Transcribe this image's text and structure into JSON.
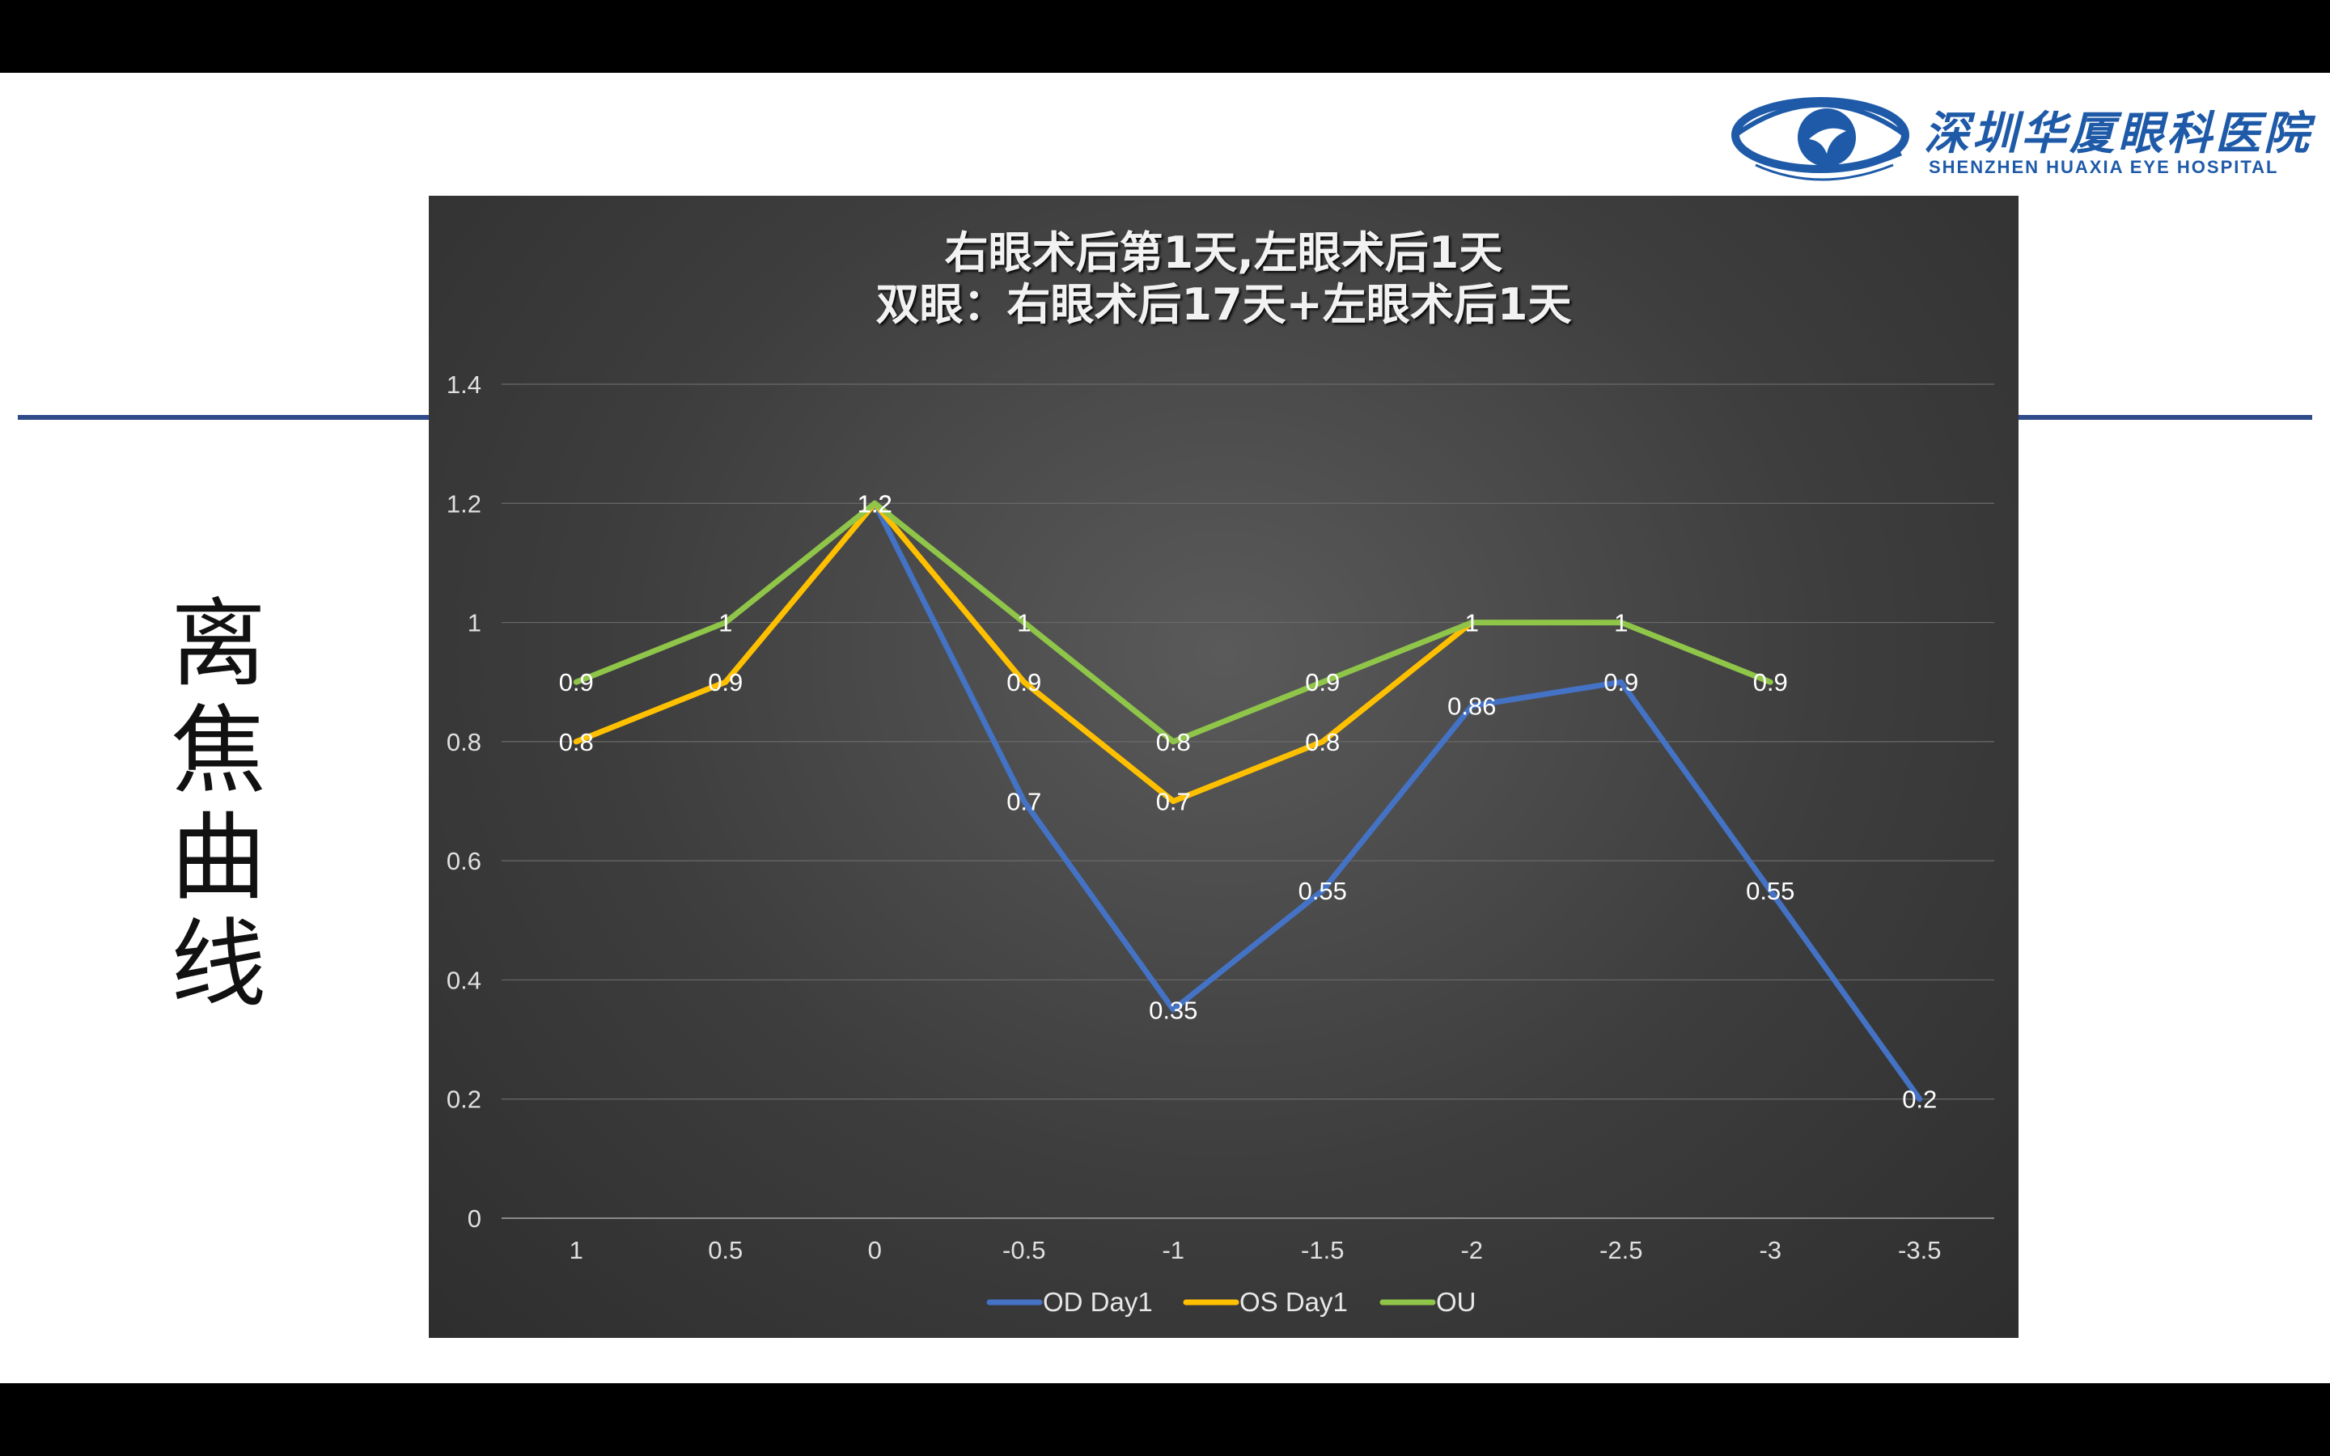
{
  "side_title": "离焦曲线",
  "logo": {
    "name_cn": "深圳华厦眼科医院",
    "name_en": "SHENZHEN HUAXIA EYE HOSPITAL"
  },
  "colors": {
    "od": "#4472c4",
    "os": "#ffc000",
    "ou": "#8fc549",
    "rule": "#2f4b8a"
  },
  "chart_data": {
    "type": "line",
    "title": [
      "右眼术后第1天,左眼术后1天",
      "双眼：右眼术后17天+左眼术后1天"
    ],
    "categories": [
      "1",
      "0.5",
      "0",
      "-0.5",
      "-1",
      "-1.5",
      "-2",
      "-2.5",
      "-3",
      "-3.5"
    ],
    "y_ticks": [
      "0",
      "0.2",
      "0.4",
      "0.6",
      "0.8",
      "1",
      "1.2",
      "1.4"
    ],
    "ylim": [
      0,
      1.4
    ],
    "grid": true,
    "legend_position": "bottom",
    "series": [
      {
        "name": "OD Day1",
        "color": "#4472c4",
        "values": [
          null,
          null,
          1.2,
          0.7,
          0.35,
          0.55,
          0.86,
          0.9,
          0.55,
          0.2
        ]
      },
      {
        "name": "OS Day1",
        "color": "#ffc000",
        "values": [
          0.8,
          0.9,
          1.2,
          0.9,
          0.7,
          0.8,
          1,
          null,
          null,
          null
        ]
      },
      {
        "name": "OU",
        "color": "#8fc549",
        "values": [
          0.9,
          1,
          1.2,
          1,
          0.8,
          0.9,
          1,
          1,
          0.9,
          null
        ]
      }
    ]
  }
}
